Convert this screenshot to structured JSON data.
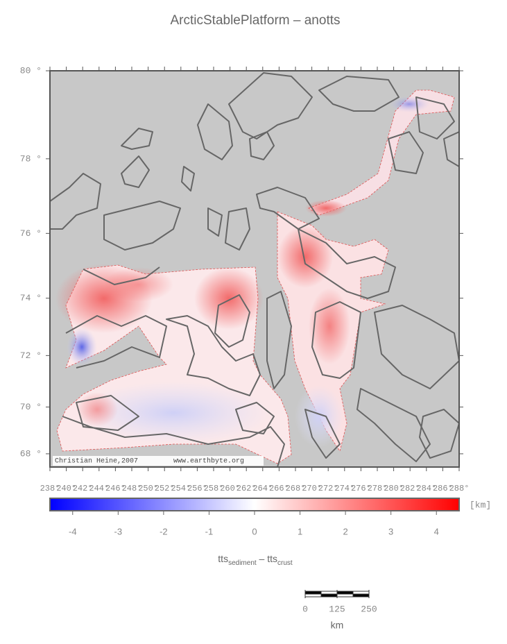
{
  "title": "ArcticStablePlatform – anotts",
  "map": {
    "projection": "mercator",
    "lon_range": [
      238,
      288
    ],
    "lat_range": [
      67.4,
      80
    ],
    "lon_ticks": [
      {
        "value": 238,
        "label": "238°"
      },
      {
        "value": 240,
        "label": "240°"
      },
      {
        "value": 242,
        "label": "242°"
      },
      {
        "value": 244,
        "label": "244°"
      },
      {
        "value": 246,
        "label": "246°"
      },
      {
        "value": 248,
        "label": "248°"
      },
      {
        "value": 250,
        "label": "250°"
      },
      {
        "value": 252,
        "label": "252°"
      },
      {
        "value": 254,
        "label": "254°"
      },
      {
        "value": 256,
        "label": "256°"
      },
      {
        "value": 258,
        "label": "258°"
      },
      {
        "value": 260,
        "label": "260°"
      },
      {
        "value": 262,
        "label": "262°"
      },
      {
        "value": 264,
        "label": "264°"
      },
      {
        "value": 266,
        "label": "266°"
      },
      {
        "value": 268,
        "label": "268°"
      },
      {
        "value": 270,
        "label": "270°"
      },
      {
        "value": 272,
        "label": "272°"
      },
      {
        "value": 274,
        "label": "274°"
      },
      {
        "value": 276,
        "label": "276°"
      },
      {
        "value": 278,
        "label": "278°"
      },
      {
        "value": 280,
        "label": "280°"
      },
      {
        "value": 282,
        "label": "282°"
      },
      {
        "value": 284,
        "label": "284°"
      },
      {
        "value": 286,
        "label": "286°"
      },
      {
        "value": 288,
        "label": "288°"
      }
    ],
    "lat_ticks": [
      {
        "value": 80,
        "label": "80 °"
      },
      {
        "value": 78,
        "label": "78 °"
      },
      {
        "value": 76,
        "label": "76 °"
      },
      {
        "value": 74,
        "label": "74 °"
      },
      {
        "value": 72,
        "label": "72 °"
      },
      {
        "value": 70,
        "label": "70 °"
      },
      {
        "value": 68,
        "label": "68 °"
      }
    ],
    "credits": [
      "Christian Heine,2007",
      "www.earthbyte.org"
    ]
  },
  "colorbar": {
    "range": [
      -4.5,
      4.5
    ],
    "ticks": [
      -4,
      -3,
      -2,
      -1,
      0,
      1,
      2,
      3,
      4
    ],
    "unit": "[km]",
    "label_parts": [
      "tts",
      "sediment",
      " – tts",
      "crust"
    ]
  },
  "scale_bar": {
    "ticks": [
      0,
      125,
      250
    ],
    "unit": "km"
  }
}
